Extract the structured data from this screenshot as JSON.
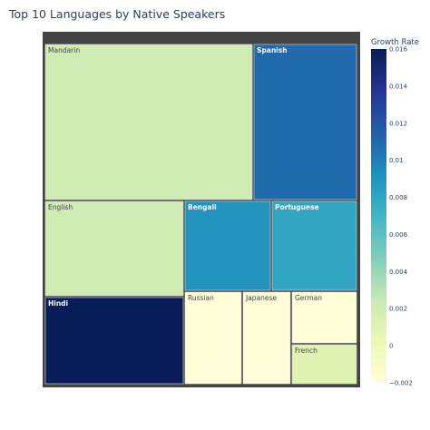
{
  "chart_data": {
    "type": "treemap",
    "title": "Top 10 Languages by Native Speakers",
    "colorbar_title": "Growth Rate",
    "color_range": [
      -0.002,
      0.016
    ],
    "colorbar_ticks": [
      "0.016",
      "0.014",
      "0.012",
      "0.01",
      "0.008",
      "0.006",
      "0.004",
      "0.002",
      "0",
      "−0.002"
    ],
    "colorbar_tick_values": [
      0.016,
      0.014,
      0.012,
      0.01,
      0.008,
      0.006,
      0.004,
      0.002,
      0,
      -0.002
    ],
    "colorscale": [
      "#ffffd9",
      "#edf8b1",
      "#c7e9b4",
      "#7fcdbb",
      "#41b6c4",
      "#1d91c0",
      "#225ea8",
      "#253494",
      "#081d58"
    ],
    "items": [
      {
        "label": "Mandarin",
        "growth": 0.002
      },
      {
        "label": "Spanish",
        "growth": 0.011
      },
      {
        "label": "English",
        "growth": 0.002
      },
      {
        "label": "Bengali",
        "growth": 0.009
      },
      {
        "label": "Portuguese",
        "growth": 0.008
      },
      {
        "label": "Hindi",
        "growth": 0.016
      },
      {
        "label": "Russian",
        "growth": -0.002
      },
      {
        "label": "Japanese",
        "growth": -0.002
      },
      {
        "label": "German",
        "growth": -0.002
      },
      {
        "label": "French",
        "growth": 0.001
      }
    ]
  }
}
